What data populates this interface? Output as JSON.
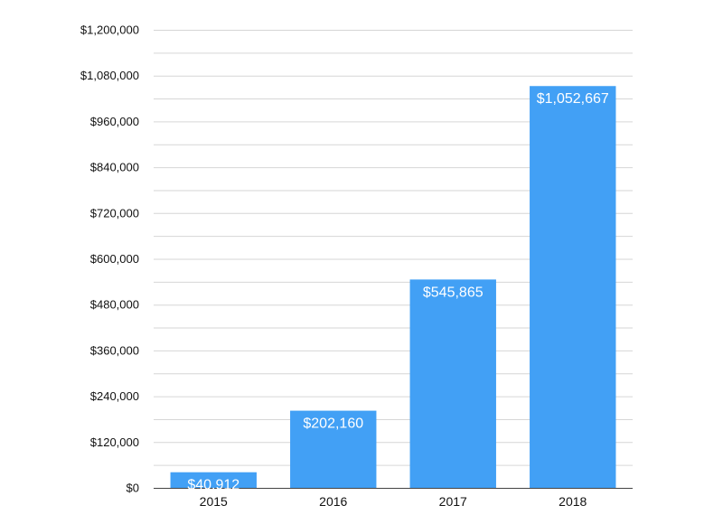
{
  "chart_data": {
    "type": "bar",
    "title": "",
    "xlabel": "",
    "ylabel": "",
    "categories": [
      "2015",
      "2016",
      "2017",
      "2018"
    ],
    "values": [
      40912,
      202160,
      545865,
      1052667
    ],
    "data_labels": [
      "$40,912",
      "$202,160",
      "$545,865",
      "$1,052,667"
    ],
    "ylim": [
      0,
      1200000
    ],
    "y_ticks": [
      0,
      120000,
      240000,
      360000,
      480000,
      600000,
      720000,
      840000,
      960000,
      1080000,
      1200000
    ],
    "y_tick_labels": [
      "$0",
      "$120,000",
      "$240,000",
      "$360,000",
      "$480,000",
      "$600,000",
      "$720,000",
      "$840,000",
      "$960,000",
      "$1,080,000",
      "$1,200,000"
    ],
    "minor_gridlines_per_major": 2,
    "grid": true,
    "legend": "none",
    "bar_color": "#42a0f5",
    "label_color": "#ffffff",
    "gridline_color": "#d6d6d6",
    "axis_color": "#444444"
  }
}
